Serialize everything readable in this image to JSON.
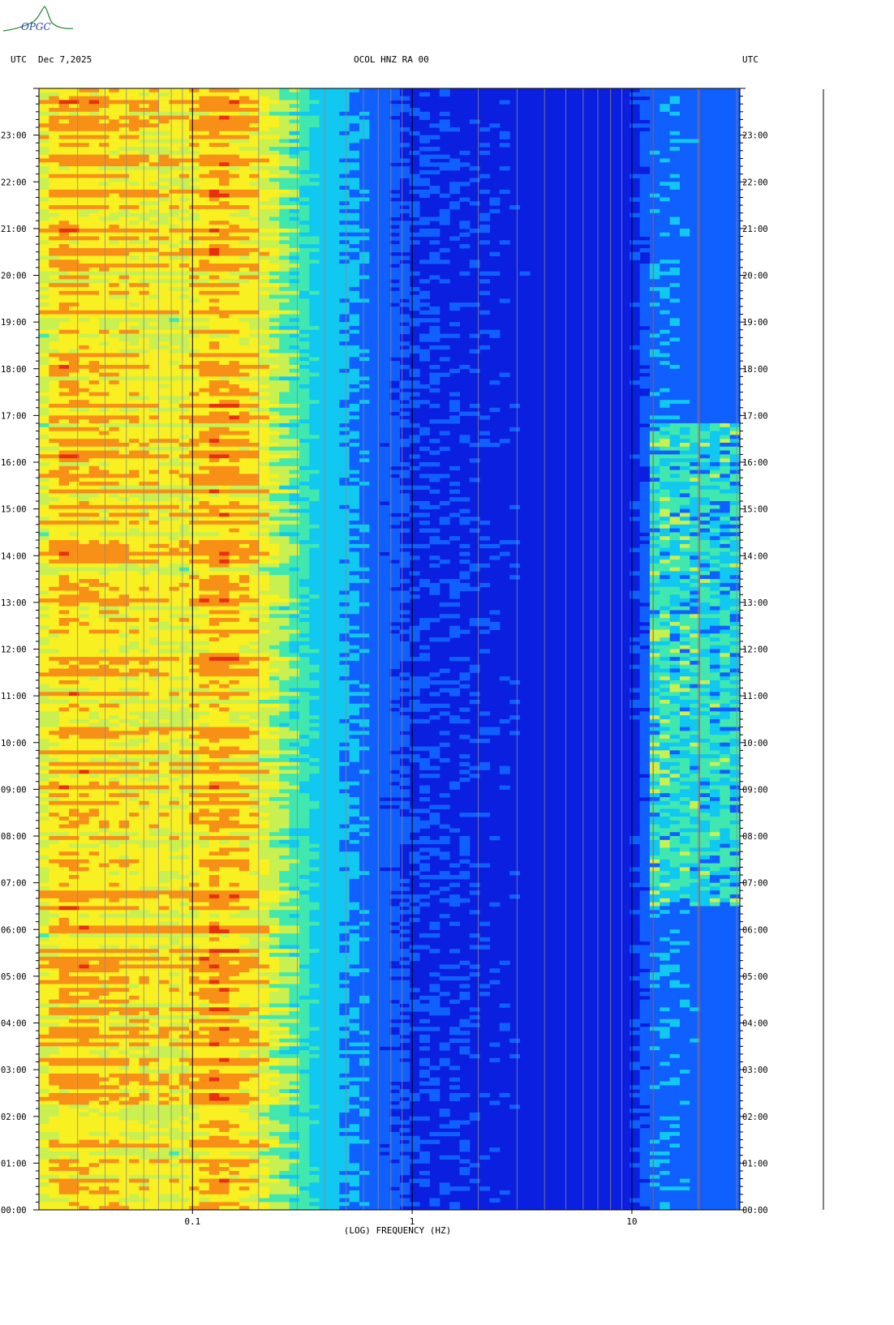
{
  "header": {
    "left_label": "UTC",
    "date": "Dec 7,2025",
    "station": "OCOL HNZ RA 00",
    "right_label": "UTC",
    "logo_text": "OPGC"
  },
  "chart_data": {
    "type": "heatmap",
    "title": "OCOL HNZ RA 00",
    "xlabel": "(LOG) FREQUENCY (HZ)",
    "x_scale": "log",
    "xlim": [
      0.02,
      31
    ],
    "x_ticks": [
      {
        "value": 0.1,
        "label": "0.1"
      },
      {
        "value": 1,
        "label": "1"
      },
      {
        "value": 10,
        "label": "10"
      }
    ],
    "ylabel": "UTC",
    "ylim_hours": [
      0,
      24
    ],
    "y_ticks": [
      "00:00",
      "01:00",
      "02:00",
      "03:00",
      "04:00",
      "05:00",
      "06:00",
      "07:00",
      "08:00",
      "09:00",
      "10:00",
      "11:00",
      "12:00",
      "13:00",
      "14:00",
      "15:00",
      "16:00",
      "17:00",
      "18:00",
      "19:00",
      "20:00",
      "21:00",
      "22:00",
      "23:00"
    ],
    "colormap": [
      "#0a1fe0",
      "#1060ff",
      "#10c8f0",
      "#40e8b0",
      "#c8f050",
      "#f8f020",
      "#f89018",
      "#e83010"
    ],
    "power_profile_by_frequency": [
      {
        "freq": 0.02,
        "level": 0.62
      },
      {
        "freq": 0.025,
        "level": 0.78
      },
      {
        "freq": 0.05,
        "level": 0.72
      },
      {
        "freq": 0.09,
        "level": 0.68
      },
      {
        "freq": 0.13,
        "level": 0.82
      },
      {
        "freq": 0.2,
        "level": 0.7
      },
      {
        "freq": 0.28,
        "level": 0.45
      },
      {
        "freq": 0.4,
        "level": 0.28
      },
      {
        "freq": 0.7,
        "level": 0.16
      },
      {
        "freq": 1.0,
        "level": 0.1
      },
      {
        "freq": 5.0,
        "level": 0.06
      },
      {
        "freq": 10.0,
        "level": 0.07
      },
      {
        "freq": 13.0,
        "level": 0.2
      },
      {
        "freq": 30.0,
        "level": 0.15
      }
    ],
    "highlighted_lines_hz": [
      12.5,
      20.3
    ],
    "grid": true
  }
}
